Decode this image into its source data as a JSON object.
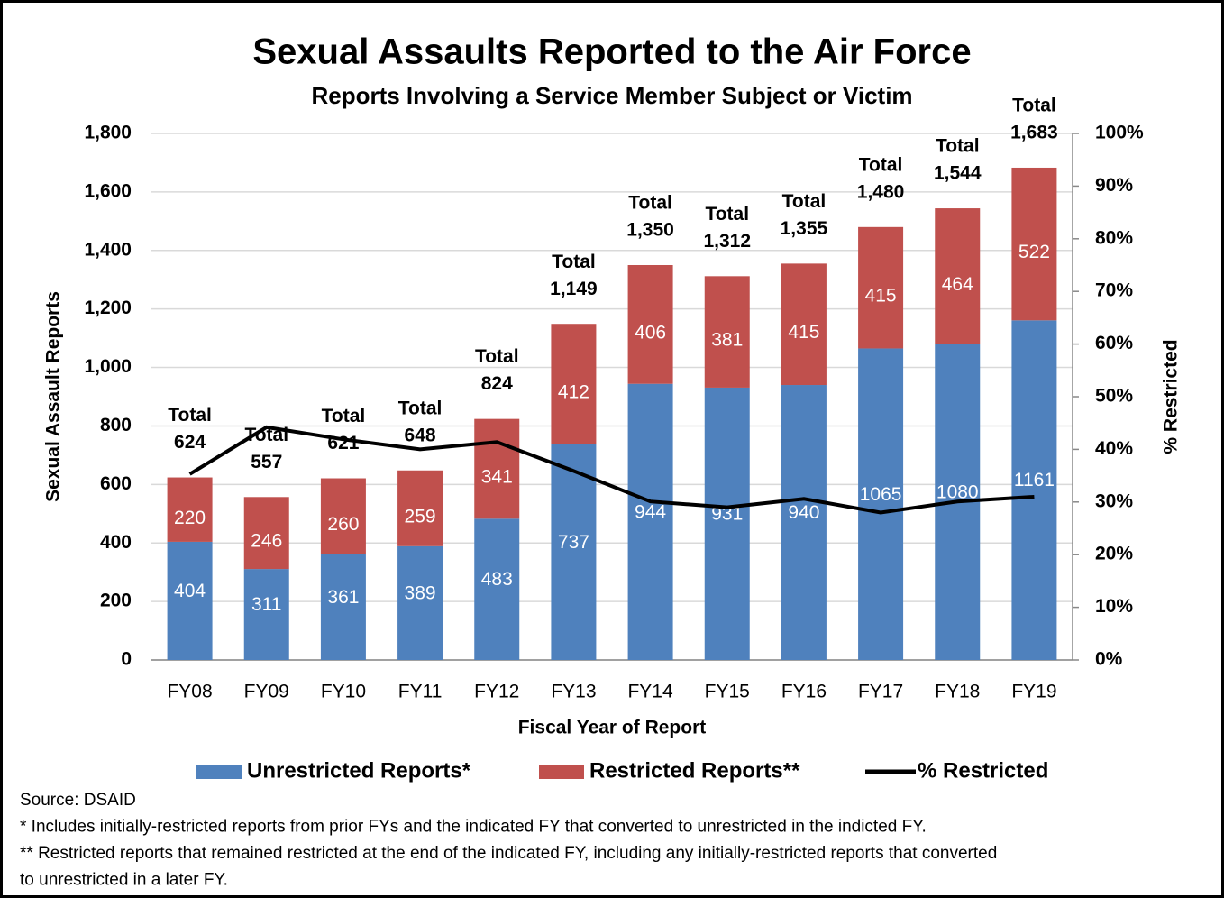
{
  "chart_data": {
    "type": "bar",
    "title": "Sexual Assaults Reported to the Air Force",
    "subtitle": "Reports Involving a Service Member Subject or Victim",
    "y_label": "Sexual Assault Reports",
    "y2_label": "% Restricted",
    "x_label": "Fiscal Year of Report",
    "categories": [
      "FY08",
      "FY09",
      "FY10",
      "FY11",
      "FY12",
      "FY13",
      "FY14",
      "FY15",
      "FY16",
      "FY17",
      "FY18",
      "FY19"
    ],
    "series": [
      {
        "name": "Unrestricted Reports*",
        "color": "#4f81bd",
        "type": "bar",
        "values": [
          404,
          311,
          361,
          389,
          483,
          737,
          944,
          931,
          940,
          1065,
          1080,
          1161
        ]
      },
      {
        "name": "Restricted Reports**",
        "color": "#c0504d",
        "type": "bar",
        "values": [
          220,
          246,
          260,
          259,
          341,
          412,
          406,
          381,
          415,
          415,
          464,
          522
        ]
      },
      {
        "name": "% Restricted",
        "color": "#000000",
        "type": "line",
        "axis": "y2",
        "values": [
          35.3,
          44.2,
          41.9,
          40.0,
          41.4,
          35.9,
          30.1,
          29.0,
          30.6,
          28.0,
          30.1,
          31.0
        ]
      }
    ],
    "totals": {
      "label": "Total",
      "values": [
        624,
        557,
        621,
        648,
        824,
        1149,
        1350,
        1312,
        1355,
        1480,
        1544,
        1683
      ],
      "value_labels": [
        "624",
        "557",
        "621",
        "648",
        "824",
        "1,149",
        "1,350",
        "1,312",
        "1,355",
        "1,480",
        "1,544",
        "1,683"
      ]
    },
    "ylim": [
      0,
      1800
    ],
    "yticks": [
      0,
      200,
      400,
      600,
      800,
      {
        "value": 1000,
        "label": "1,000"
      },
      {
        "value": 1200,
        "label": "1,200"
      },
      {
        "value": 1400,
        "label": "1,400"
      },
      {
        "value": 1600,
        "label": "1,600"
      },
      {
        "value": 1800,
        "label": "1,800"
      }
    ],
    "y2lim": [
      0,
      100
    ],
    "y2ticks": [
      {
        "value": 0,
        "label": "0%"
      },
      {
        "value": 10,
        "label": "10%"
      },
      {
        "value": 20,
        "label": "20%"
      },
      {
        "value": 30,
        "label": "30%"
      },
      {
        "value": 40,
        "label": "40%"
      },
      {
        "value": 50,
        "label": "50%"
      },
      {
        "value": 60,
        "label": "60%"
      },
      {
        "value": 70,
        "label": "70%"
      },
      {
        "value": 80,
        "label": "80%"
      },
      {
        "value": 90,
        "label": "90%"
      },
      {
        "value": 100,
        "label": "100%"
      }
    ],
    "grid": true,
    "legend": "bottom",
    "notes": [
      "Source:  DSAID",
      "* Includes initially-restricted reports from prior FYs and the indicated FY that converted to unrestricted in the indicted FY.",
      "** Restricted reports that remained restricted at the end of the indicated FY, including any initially-restricted reports that converted",
      "to unrestricted in a later FY."
    ]
  }
}
